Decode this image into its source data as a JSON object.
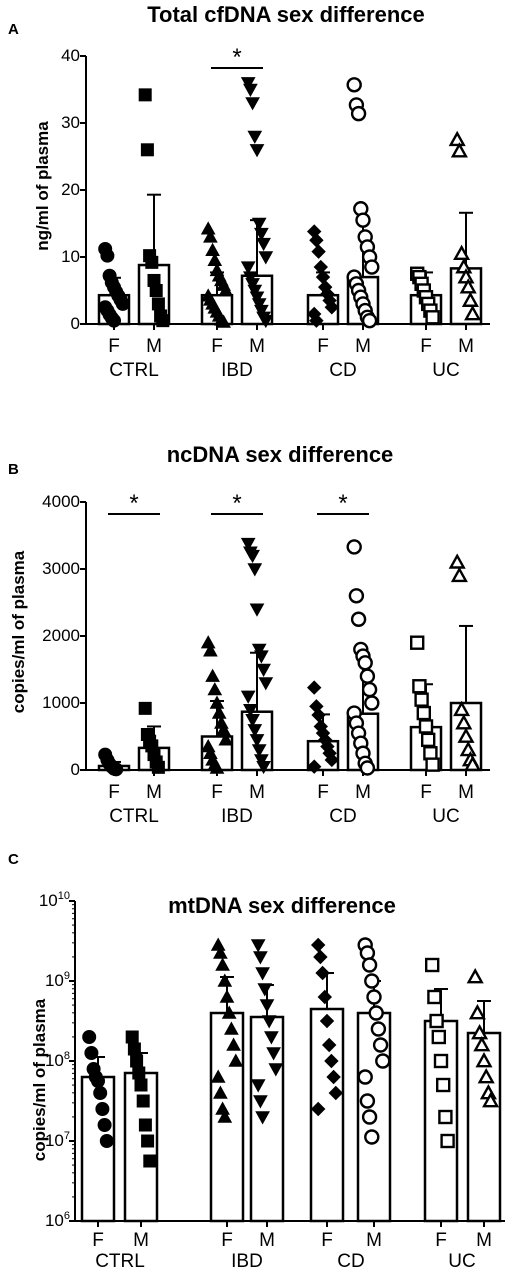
{
  "chart_data": [
    {
      "type": "bar",
      "panel": "A",
      "title": "Total cfDNA sex difference",
      "ylabel": "ng/ml of plasma",
      "yscale": "linear",
      "ylim": [
        0,
        40
      ],
      "yticks": [
        0,
        10,
        20,
        30,
        40
      ],
      "yticklabels": [
        "0",
        "10",
        "20",
        "30",
        "40"
      ],
      "groups": [
        "CTRL",
        "IBD",
        "CD",
        "UC"
      ],
      "sexes": [
        "F",
        "M"
      ],
      "bars": [
        {
          "group": "CTRL",
          "sex": "F",
          "mean": 4.3,
          "err": 2.6,
          "marker": "circle-filled",
          "points": [
            11.2,
            10.2,
            7.2,
            6.2,
            5.5,
            4.8,
            4.2,
            3.6,
            3.0,
            2.5,
            2.0,
            1.4,
            0.9,
            0.5
          ]
        },
        {
          "group": "CTRL",
          "sex": "M",
          "mean": 8.8,
          "err": 10.5,
          "marker": "square-filled",
          "points": [
            34.2,
            26.0,
            10.2,
            9.2,
            6.5,
            5.0,
            3.0,
            1.2,
            0.5
          ]
        },
        {
          "group": "IBD",
          "sex": "F",
          "mean": 4.3,
          "err": 3.4,
          "marker": "triangle-up-filled",
          "points": [
            14.2,
            13.0,
            11.0,
            9.5,
            8.0,
            7.2,
            6.5,
            5.8,
            5.0,
            4.2,
            3.6,
            3.0,
            2.4,
            1.8,
            1.2,
            0.6,
            0.3
          ]
        },
        {
          "group": "IBD",
          "sex": "M",
          "mean": 7.2,
          "err": 8.3,
          "marker": "triangle-down-filled",
          "points": [
            36.0,
            35.0,
            33.0,
            28.0,
            26.0,
            15.0,
            13.5,
            12.0,
            10.0,
            8.5,
            7.0,
            6.0,
            5.0,
            4.0,
            3.0,
            2.0,
            1.0,
            0.5
          ]
        },
        {
          "group": "CD",
          "sex": "F",
          "mean": 4.3,
          "err": 3.4,
          "marker": "diamond-filled",
          "points": [
            13.8,
            12.5,
            10.8,
            8.5,
            7.0,
            5.5,
            4.5,
            3.5,
            2.5,
            1.5,
            0.5
          ]
        },
        {
          "group": "CD",
          "sex": "M",
          "mean": 7.0,
          "err": 8.3,
          "marker": "circle-open",
          "points": [
            35.7,
            32.7,
            31.4,
            17.2,
            15.5,
            13.0,
            11.5,
            10.0,
            8.5,
            7.0,
            6.0,
            5.0,
            4.0,
            3.0,
            2.0,
            1.0,
            0.5
          ]
        },
        {
          "group": "UC",
          "sex": "F",
          "mean": 4.3,
          "err": 3.4,
          "marker": "square-open",
          "points": [
            7.5,
            7.0,
            6.0,
            5.0,
            4.0,
            3.0,
            2.0,
            1.0
          ]
        },
        {
          "group": "UC",
          "sex": "M",
          "mean": 8.3,
          "err": 8.3,
          "marker": "triangle-up-open",
          "points": [
            27.5,
            25.8,
            10.5,
            8.5,
            7.0,
            5.5,
            3.5,
            1.5
          ]
        }
      ],
      "significance": [
        {
          "group": "IBD",
          "label": "*"
        }
      ]
    },
    {
      "type": "bar",
      "panel": "B",
      "title": "ncDNA sex difference",
      "ylabel": "copies/ml of plasma",
      "yscale": "linear",
      "ylim": [
        0,
        4000
      ],
      "yticks": [
        0,
        1000,
        2000,
        3000,
        4000
      ],
      "yticklabels": [
        "0",
        "1000",
        "2000",
        "3000",
        "4000"
      ],
      "groups": [
        "CTRL",
        "IBD",
        "CD",
        "UC"
      ],
      "sexes": [
        "F",
        "M"
      ],
      "bars": [
        {
          "group": "CTRL",
          "sex": "F",
          "mean": 60,
          "err": 60,
          "marker": "circle-filled",
          "points": [
            230,
            150,
            90,
            50,
            20,
            10
          ]
        },
        {
          "group": "CTRL",
          "sex": "M",
          "mean": 330,
          "err": 320,
          "marker": "square-filled",
          "points": [
            920,
            530,
            430,
            360,
            230,
            120,
            40
          ]
        },
        {
          "group": "IBD",
          "sex": "F",
          "mean": 500,
          "err": 530,
          "marker": "triangle-up-filled",
          "points": [
            1900,
            1780,
            1400,
            1200,
            1000,
            850,
            700,
            600,
            450,
            350,
            250,
            150,
            80,
            30
          ]
        },
        {
          "group": "IBD",
          "sex": "M",
          "mean": 870,
          "err": 880,
          "marker": "triangle-down-filled",
          "points": [
            3380,
            3250,
            3200,
            3000,
            2400,
            1800,
            1700,
            1500,
            1300,
            1100,
            900,
            750,
            600,
            450,
            300,
            150,
            50
          ]
        },
        {
          "group": "CD",
          "sex": "F",
          "mean": 430,
          "err": 400,
          "marker": "diamond-filled",
          "points": [
            1230,
            950,
            820,
            650,
            550,
            450,
            350,
            250,
            150,
            50
          ]
        },
        {
          "group": "CD",
          "sex": "M",
          "mean": 840,
          "err": 880,
          "marker": "circle-open",
          "points": [
            3330,
            2600,
            2250,
            1800,
            1700,
            1600,
            1400,
            1200,
            1000,
            850,
            700,
            550,
            400,
            250,
            100,
            30
          ]
        },
        {
          "group": "UC",
          "sex": "F",
          "mean": 640,
          "err": 640,
          "marker": "square-open",
          "points": [
            1900,
            1250,
            1050,
            850,
            650,
            450,
            250,
            80
          ]
        },
        {
          "group": "UC",
          "sex": "M",
          "mean": 1000,
          "err": 1150,
          "marker": "triangle-up-open",
          "points": [
            3100,
            2900,
            900,
            700,
            500,
            300,
            150,
            80
          ]
        }
      ],
      "significance": [
        {
          "group": "CTRL",
          "label": "*"
        },
        {
          "group": "IBD",
          "label": "*"
        },
        {
          "group": "CD",
          "label": "*"
        }
      ]
    },
    {
      "type": "bar",
      "panel": "C",
      "title": "mtDNA sex difference",
      "ylabel": "copies/ml of plasma",
      "yscale": "log",
      "ylim_exp": [
        6,
        10
      ],
      "ytick_exponents": [
        "6",
        "7",
        "8",
        "9",
        "10"
      ],
      "ytick_base": "10",
      "groups": [
        "CTRL",
        "IBD",
        "CD",
        "UC"
      ],
      "sexes": [
        "F",
        "M"
      ],
      "bars": [
        {
          "group": "CTRL",
          "sex": "F",
          "mean_log10": 7.8,
          "err_hi_log10": 8.05,
          "marker": "circle-filled",
          "points_log10": [
            8.3,
            8.1,
            7.9,
            7.8,
            7.75,
            7.6,
            7.4,
            7.2,
            7.0
          ]
        },
        {
          "group": "CTRL",
          "sex": "M",
          "mean_log10": 7.85,
          "err_hi_log10": 8.1,
          "marker": "square-filled",
          "points_log10": [
            8.3,
            8.15,
            8.0,
            7.85,
            7.7,
            7.5,
            7.2,
            7.0,
            6.75
          ]
        },
        {
          "group": "IBD",
          "sex": "F",
          "mean_log10": 8.6,
          "err_hi_log10": 9.05,
          "marker": "triangle-up-filled",
          "points_log10": [
            9.45,
            9.35,
            9.2,
            9.0,
            8.8,
            8.6,
            8.4,
            8.2,
            8.0,
            7.8,
            7.6,
            7.4,
            7.3
          ]
        },
        {
          "group": "IBD",
          "sex": "M",
          "mean_log10": 8.55,
          "err_hi_log10": 8.95,
          "marker": "triangle-down-filled",
          "points_log10": [
            9.45,
            9.3,
            9.1,
            8.9,
            8.7,
            8.5,
            8.3,
            8.1,
            7.9,
            7.7,
            7.5,
            7.3
          ]
        },
        {
          "group": "CD",
          "sex": "F",
          "mean_log10": 8.65,
          "err_hi_log10": 9.1,
          "marker": "diamond-filled",
          "points_log10": [
            9.45,
            9.3,
            9.1,
            8.8,
            8.5,
            8.2,
            8.0,
            7.8,
            7.6,
            7.4
          ]
        },
        {
          "group": "CD",
          "sex": "M",
          "mean_log10": 8.6,
          "err_hi_log10": 9.0,
          "marker": "circle-open",
          "points_log10": [
            9.45,
            9.35,
            9.2,
            9.0,
            8.8,
            8.6,
            8.4,
            8.2,
            8.0,
            7.8,
            7.5,
            7.3,
            7.05
          ]
        },
        {
          "group": "UC",
          "sex": "F",
          "mean_log10": 8.5,
          "err_hi_log10": 8.9,
          "marker": "square-open",
          "points_log10": [
            9.2,
            8.8,
            8.5,
            8.3,
            8.0,
            7.7,
            7.3,
            7.0
          ]
        },
        {
          "group": "UC",
          "sex": "M",
          "mean_log10": 8.35,
          "err_hi_log10": 8.75,
          "marker": "triangle-up-open",
          "points_log10": [
            9.05,
            8.6,
            8.35,
            8.2,
            8.0,
            7.8,
            7.6,
            7.5
          ]
        }
      ],
      "significance": []
    }
  ]
}
